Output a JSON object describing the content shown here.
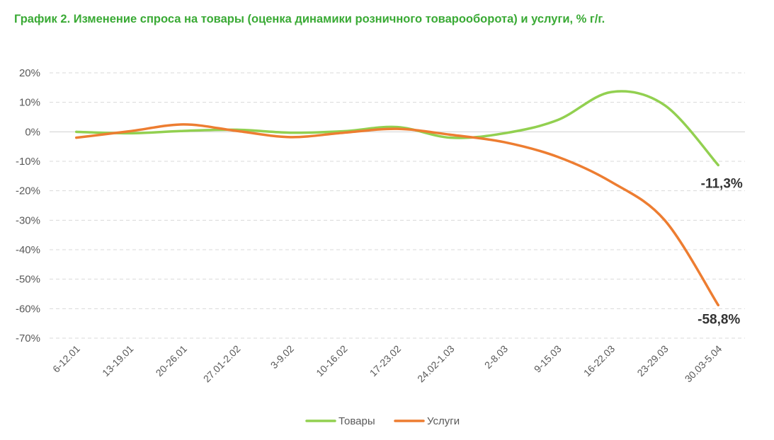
{
  "title": "График 2. Изменение спроса на товары (оценка динамики розничного товарооборота) и услуги, % г/г.",
  "chart_data": {
    "type": "line",
    "title": "График 2. Изменение спроса на товары (оценка динамики розничного товарооборота) и услуги, % г/г.",
    "categories": [
      "6-12.01",
      "13-19.01",
      "20-26.01",
      "27.01-2.02",
      "3-9.02",
      "10-16.02",
      "17-23.02",
      "24.02-1.03",
      "2-8.03",
      "9-15.03",
      "16-22.03",
      "23-29.03",
      "30.03-5.04"
    ],
    "yticks": [
      20,
      10,
      0,
      -10,
      -20,
      -30,
      -40,
      -50,
      -60,
      -70
    ],
    "ytick_labels": [
      "20%",
      "10%",
      "0%",
      "-10%",
      "-20%",
      "-30%",
      "-40%",
      "-50%",
      "-60%",
      "-70%"
    ],
    "ylim": [
      -70,
      20
    ],
    "grid": true,
    "legend_position": "bottom",
    "series": [
      {
        "name": "Товары",
        "color": "#92d050",
        "values": [
          0,
          -0.5,
          0.3,
          0.7,
          -0.3,
          0.2,
          1.6,
          -2.0,
          -0.5,
          4.0,
          13.5,
          9.0,
          -11.3
        ],
        "end_label": "-11,3%"
      },
      {
        "name": "Услуги",
        "color": "#ed7d31",
        "values": [
          -2.0,
          0.2,
          2.5,
          0.3,
          -1.8,
          -0.3,
          1.0,
          -1.0,
          -3.5,
          -8.5,
          -17.0,
          -30.0,
          -58.8
        ],
        "end_label": "-58,8%"
      }
    ]
  }
}
